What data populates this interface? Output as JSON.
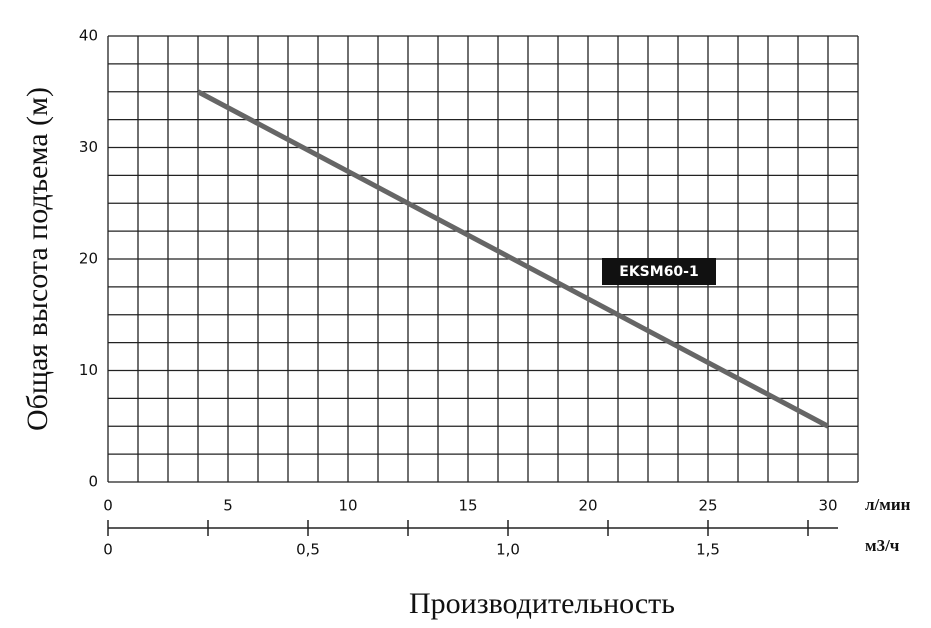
{
  "chart_data": {
    "type": "line",
    "ylabel": "Общая высота подъема (м)",
    "xlabel": "Производительность",
    "x_unit": "л/мин",
    "x2_unit": "м3/ч",
    "series": [
      {
        "name": "EKSM60-1",
        "color": "#666666",
        "x": [
          3.75,
          30
        ],
        "values": [
          35,
          5
        ]
      }
    ],
    "xlim": [
      0,
      31.25
    ],
    "xticks": [
      0,
      5,
      10,
      15,
      20,
      25,
      30
    ],
    "ylim": [
      0,
      40
    ],
    "yticks": [
      0,
      10,
      20,
      30,
      40
    ],
    "xgrid": [
      0,
      1.25,
      2.5,
      3.75,
      5,
      6.25,
      7.5,
      8.75,
      10,
      11.25,
      12.5,
      13.75,
      15,
      16.25,
      17.5,
      18.75,
      20,
      21.25,
      22.5,
      23.75,
      25,
      26.25,
      27.5,
      28.75,
      30,
      31.25
    ],
    "ygrid": [
      0,
      2.5,
      5,
      7.5,
      10,
      12.5,
      15,
      17.5,
      20,
      22.5,
      25,
      27.5,
      30,
      32.5,
      35,
      37.5,
      40
    ],
    "x2lim": [
      0,
      1.875
    ],
    "x2ticks": [
      0,
      {
        "value": 0.5,
        "label": "0,5"
      },
      {
        "value": 1.0,
        "label": "1,0"
      },
      {
        "value": 1.5,
        "label": "1,5"
      }
    ],
    "x2minor": [
      0.25,
      0.75,
      1.25,
      1.75
    ],
    "grid": true
  }
}
